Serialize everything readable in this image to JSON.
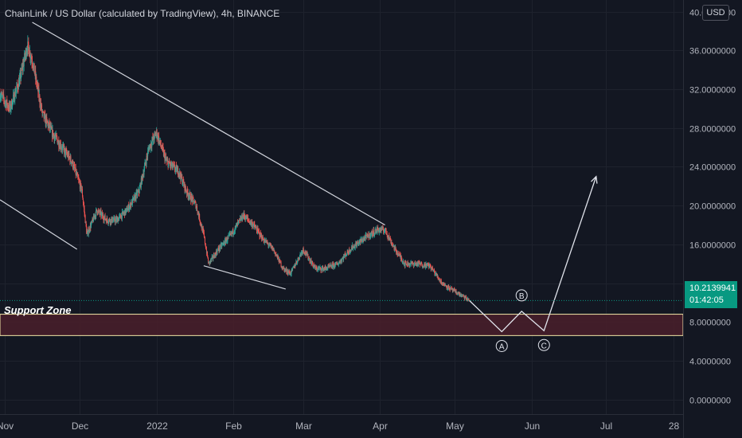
{
  "header": {
    "title": "ChainLink / US Dollar (calculated by TradingView), 4h, BINANCE",
    "currency_button": "USD"
  },
  "price_badge": {
    "price": "10.2139941",
    "countdown": "01:42:05"
  },
  "support_zone": {
    "label": "Support Zone",
    "low": 6.6,
    "high": 8.8
  },
  "wave_labels": [
    "A",
    "B",
    "C"
  ],
  "colors": {
    "background": "#131722",
    "up": "#26a69a",
    "down": "#ef5350",
    "drawing": "#d1d4dc",
    "zone_fill": "#4a1f2a",
    "zone_border": "#f2e6a7",
    "price_badge": "#089981"
  },
  "chart_data": {
    "type": "candlestick",
    "x_ticks": [
      "Nov",
      "Dec",
      "2022",
      "Feb",
      "Mar",
      "Apr",
      "May",
      "Jun",
      "Jul",
      "28"
    ],
    "x_range": [
      "2021-10-30",
      "2022-08-01"
    ],
    "y_ticks": [
      "0.0000000",
      "4.0000000",
      "8.0000000",
      "12.0000000",
      "16.0000000",
      "20.0000000",
      "24.0000000",
      "28.0000000",
      "32.0000000",
      "36.0000000",
      "40.0000000"
    ],
    "ylim": [
      -1.5,
      41.2
    ],
    "grid": true,
    "price_path": [
      [
        "2021-10-30",
        31.5
      ],
      [
        "2021-11-03",
        30
      ],
      [
        "2021-11-07",
        33
      ],
      [
        "2021-11-10",
        36.5
      ],
      [
        "2021-11-12",
        35
      ],
      [
        "2021-11-16",
        29.5
      ],
      [
        "2021-11-20",
        27.5
      ],
      [
        "2021-11-24",
        26
      ],
      [
        "2021-11-28",
        24.5
      ],
      [
        "2021-12-02",
        21.5
      ],
      [
        "2021-12-04",
        17
      ],
      [
        "2021-12-08",
        19.5
      ],
      [
        "2021-12-12",
        18.5
      ],
      [
        "2021-12-16",
        18.5
      ],
      [
        "2021-12-20",
        19.5
      ],
      [
        "2021-12-25",
        21.5
      ],
      [
        "2021-12-29",
        26
      ],
      [
        "2022-01-01",
        27.5
      ],
      [
        "2022-01-05",
        24.5
      ],
      [
        "2022-01-10",
        23.5
      ],
      [
        "2022-01-13",
        21.5
      ],
      [
        "2022-01-17",
        20
      ],
      [
        "2022-01-20",
        17
      ],
      [
        "2022-01-22",
        14
      ],
      [
        "2022-01-26",
        15.5
      ],
      [
        "2022-01-31",
        17
      ],
      [
        "2022-02-05",
        19
      ],
      [
        "2022-02-09",
        18
      ],
      [
        "2022-02-13",
        16.5
      ],
      [
        "2022-02-17",
        15.5
      ],
      [
        "2022-02-21",
        13.5
      ],
      [
        "2022-02-24",
        13
      ],
      [
        "2022-03-01",
        15.5
      ],
      [
        "2022-03-06",
        13.5
      ],
      [
        "2022-03-10",
        13.5
      ],
      [
        "2022-03-15",
        14
      ],
      [
        "2022-03-20",
        15.5
      ],
      [
        "2022-03-25",
        16.5
      ],
      [
        "2022-03-31",
        17.5
      ],
      [
        "2022-04-03",
        17.5
      ],
      [
        "2022-04-07",
        15.5
      ],
      [
        "2022-04-11",
        14
      ],
      [
        "2022-04-16",
        14
      ],
      [
        "2022-04-21",
        13.8
      ],
      [
        "2022-04-26",
        12
      ],
      [
        "2022-04-30",
        11.3
      ],
      [
        "2022-05-04",
        10.7
      ],
      [
        "2022-05-07",
        10.2
      ]
    ],
    "last_price": 10.2139941,
    "trendlines": [
      {
        "from": [
          "2021-11-12",
          38.9
        ],
        "to": [
          "2022-04-03",
          18
        ]
      },
      {
        "from": [
          "2021-10-30",
          20.6
        ],
        "to": [
          "2021-11-30",
          15.5
        ]
      },
      {
        "from": [
          "2022-01-20",
          13.8
        ],
        "to": [
          "2022-02-22",
          11.4
        ]
      }
    ],
    "projection": [
      [
        "2022-05-07",
        10.2
      ],
      [
        "2022-05-20",
        7.0
      ],
      [
        "2022-05-28",
        9.1
      ],
      [
        "2022-06-06",
        7.1
      ],
      [
        "2022-06-27",
        23.0
      ]
    ]
  }
}
